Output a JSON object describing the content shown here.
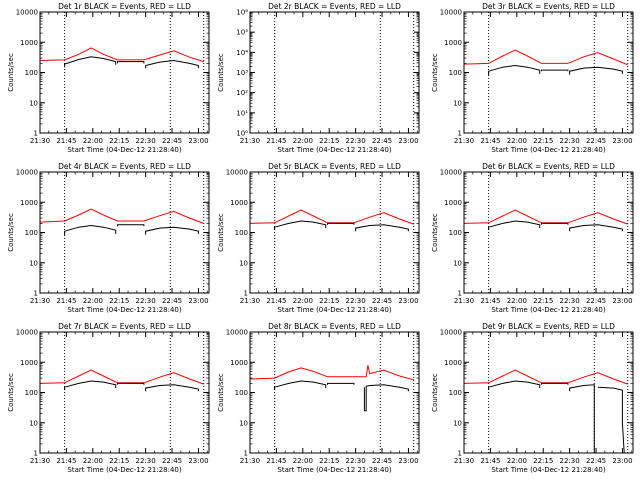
{
  "xticks": [
    "21:30",
    "21:45",
    "22:00",
    "22:15",
    "22:30",
    "22:45",
    "23:00"
  ],
  "xlabel": "Start Time (04-Dec-12 21:28:40)",
  "ylabel": "Counts/sec",
  "colors": {
    "events": "#000000",
    "lld": "#ff0000",
    "axes": "#000000"
  },
  "chart_data": [
    {
      "type": "line",
      "title": "Det 1r BLACK = Events, RED = LLD",
      "xlim": [
        "21:30",
        "23:06"
      ],
      "ylim": [
        1,
        10000
      ],
      "yscale": "log",
      "yticks": [
        "1",
        "10",
        "100",
        "1000",
        "10000"
      ],
      "vlines": [
        "21:44",
        "22:44",
        "23:03"
      ],
      "series": [
        {
          "color": "red",
          "x": [
            "21:30",
            "21:44",
            "21:52",
            "21:59",
            "22:06",
            "22:14",
            "22:29",
            "22:38",
            "22:46",
            "22:55",
            "23:03"
          ],
          "y": [
            250,
            260,
            400,
            650,
            400,
            260,
            260,
            380,
            520,
            320,
            230
          ]
        },
        {
          "color": "black",
          "segments": [
            {
              "x": [
                "21:44",
                "21:44",
                "21:52",
                "21:59",
                "22:06",
                "22:13",
                "22:13"
              ],
              "y": [
                150,
                190,
                270,
                330,
                290,
                230,
                180
              ]
            },
            {
              "x": [
                "22:14",
                "22:14",
                "22:29",
                "22:29"
              ],
              "y": [
                200,
                230,
                230,
                200
              ]
            },
            {
              "x": [
                "22:30",
                "22:30",
                "22:38",
                "22:46",
                "22:55",
                "23:00",
                "23:00"
              ],
              "y": [
                140,
                170,
                220,
                250,
                200,
                170,
                140
              ]
            }
          ]
        }
      ]
    },
    {
      "type": "line",
      "title": "Det 2r BLACK = Events, RED = LLD",
      "xlim": [
        "21:30",
        "23:06"
      ],
      "ylim": [
        1,
        1000000
      ],
      "yscale": "log",
      "yticks": [
        "10⁰",
        "10¹",
        "10²",
        "10³",
        "10⁴",
        "10⁵",
        "10⁶"
      ],
      "vlines": [
        "21:44",
        "22:44",
        "23:03"
      ],
      "series": []
    },
    {
      "type": "line",
      "title": "Det 3r BLACK = Events, RED = LLD",
      "xlim": [
        "21:30",
        "23:06"
      ],
      "ylim": [
        1,
        10000
      ],
      "yscale": "log",
      "yticks": [
        "1",
        "10",
        "100",
        "1000",
        "10000"
      ],
      "vlines": [
        "21:44",
        "22:44",
        "23:03"
      ],
      "series": [
        {
          "color": "red",
          "x": [
            "21:30",
            "21:44",
            "21:52",
            "21:59",
            "22:06",
            "22:14",
            "22:29",
            "22:38",
            "22:46",
            "22:55",
            "23:03"
          ],
          "y": [
            190,
            200,
            350,
            550,
            350,
            200,
            200,
            330,
            450,
            280,
            180
          ]
        },
        {
          "color": "black",
          "segments": [
            {
              "x": [
                "21:44",
                "21:44",
                "21:52",
                "21:59",
                "22:06",
                "22:13",
                "22:13"
              ],
              "y": [
                80,
                110,
                150,
                170,
                150,
                120,
                90
              ]
            },
            {
              "x": [
                "22:14",
                "22:14",
                "22:29",
                "22:29"
              ],
              "y": [
                110,
                120,
                120,
                110
              ]
            },
            {
              "x": [
                "22:30",
                "22:30",
                "22:38",
                "22:46",
                "22:55",
                "23:00",
                "23:00"
              ],
              "y": [
                85,
                110,
                140,
                150,
                130,
                110,
                90
              ]
            }
          ]
        }
      ]
    },
    {
      "type": "line",
      "title": "Det 4r BLACK = Events, RED = LLD",
      "xlim": [
        "21:30",
        "23:06"
      ],
      "ylim": [
        1,
        10000
      ],
      "yscale": "log",
      "yticks": [
        "1",
        "10",
        "100",
        "1000",
        "10000"
      ],
      "vlines": [
        "21:44",
        "22:44",
        "23:03"
      ],
      "series": [
        {
          "color": "red",
          "x": [
            "21:30",
            "21:44",
            "21:52",
            "21:59",
            "22:06",
            "22:14",
            "22:29",
            "22:38",
            "22:46",
            "22:55",
            "23:03"
          ],
          "y": [
            220,
            240,
            380,
            600,
            380,
            240,
            240,
            360,
            500,
            300,
            200
          ]
        },
        {
          "color": "black",
          "segments": [
            {
              "x": [
                "21:44",
                "21:44",
                "21:52",
                "21:59",
                "22:06",
                "22:13",
                "22:13"
              ],
              "y": [
                80,
                110,
                150,
                170,
                150,
                120,
                90
              ]
            },
            {
              "x": [
                "22:14",
                "22:14",
                "22:29",
                "22:29"
              ],
              "y": [
                160,
                180,
                180,
                160
              ]
            },
            {
              "x": [
                "22:30",
                "22:30",
                "22:38",
                "22:46",
                "22:55",
                "23:00",
                "23:00"
              ],
              "y": [
                85,
                110,
                140,
                150,
                130,
                110,
                90
              ]
            }
          ]
        }
      ]
    },
    {
      "type": "line",
      "title": "Det 5r BLACK = Events, RED = LLD",
      "xlim": [
        "21:30",
        "23:06"
      ],
      "ylim": [
        1,
        10000
      ],
      "yscale": "log",
      "yticks": [
        "1",
        "10",
        "100",
        "1000",
        "10000"
      ],
      "vlines": [
        "21:44",
        "22:44",
        "23:03"
      ],
      "series": [
        {
          "color": "red",
          "x": [
            "21:30",
            "21:44",
            "21:52",
            "21:59",
            "22:06",
            "22:14",
            "22:29",
            "22:38",
            "22:46",
            "22:55",
            "23:03"
          ],
          "y": [
            200,
            210,
            350,
            550,
            350,
            210,
            210,
            320,
            450,
            280,
            190
          ]
        },
        {
          "color": "black",
          "segments": [
            {
              "x": [
                "21:44",
                "21:44",
                "21:52",
                "21:59",
                "22:06",
                "22:13",
                "22:13"
              ],
              "y": [
                120,
                150,
                200,
                240,
                220,
                180,
                140
              ]
            },
            {
              "x": [
                "22:14",
                "22:14",
                "22:29",
                "22:29"
              ],
              "y": [
                180,
                200,
                200,
                180
              ]
            },
            {
              "x": [
                "22:30",
                "22:30",
                "22:38",
                "22:46",
                "22:55",
                "23:00",
                "23:00"
              ],
              "y": [
                110,
                140,
                170,
                180,
                150,
                130,
                110
              ]
            }
          ]
        }
      ]
    },
    {
      "type": "line",
      "title": "Det 6r BLACK = Events, RED = LLD",
      "xlim": [
        "21:30",
        "23:06"
      ],
      "ylim": [
        1,
        10000
      ],
      "yscale": "log",
      "yticks": [
        "1",
        "10",
        "100",
        "1000",
        "10000"
      ],
      "vlines": [
        "21:44",
        "22:44",
        "23:03"
      ],
      "series": [
        {
          "color": "red",
          "x": [
            "21:30",
            "21:44",
            "21:52",
            "21:59",
            "22:06",
            "22:14",
            "22:29",
            "22:38",
            "22:46",
            "22:55",
            "23:03"
          ],
          "y": [
            200,
            210,
            350,
            550,
            350,
            210,
            210,
            320,
            450,
            280,
            190
          ]
        },
        {
          "color": "black",
          "segments": [
            {
              "x": [
                "21:44",
                "21:44",
                "21:52",
                "21:59",
                "22:06",
                "22:13",
                "22:13"
              ],
              "y": [
                120,
                150,
                200,
                240,
                220,
                180,
                140
              ]
            },
            {
              "x": [
                "22:14",
                "22:14",
                "22:29",
                "22:29"
              ],
              "y": [
                180,
                200,
                200,
                180
              ]
            },
            {
              "x": [
                "22:30",
                "22:30",
                "22:38",
                "22:46",
                "22:55",
                "23:00",
                "23:00"
              ],
              "y": [
                110,
                140,
                170,
                180,
                150,
                130,
                110
              ]
            }
          ]
        }
      ]
    },
    {
      "type": "line",
      "title": "Det 7r BLACK = Events, RED = LLD",
      "xlim": [
        "21:30",
        "23:06"
      ],
      "ylim": [
        1,
        10000
      ],
      "yscale": "log",
      "yticks": [
        "1",
        "10",
        "100",
        "1000",
        "10000"
      ],
      "vlines": [
        "21:44",
        "22:44",
        "23:03"
      ],
      "series": [
        {
          "color": "red",
          "x": [
            "21:30",
            "21:44",
            "21:52",
            "21:59",
            "22:06",
            "22:14",
            "22:29",
            "22:38",
            "22:46",
            "22:55",
            "23:03"
          ],
          "y": [
            200,
            210,
            350,
            550,
            350,
            210,
            210,
            320,
            450,
            280,
            190
          ]
        },
        {
          "color": "black",
          "segments": [
            {
              "x": [
                "21:44",
                "21:44",
                "21:52",
                "21:59",
                "22:06",
                "22:13",
                "22:13"
              ],
              "y": [
                120,
                150,
                200,
                240,
                220,
                180,
                140
              ]
            },
            {
              "x": [
                "22:14",
                "22:14",
                "22:29",
                "22:29"
              ],
              "y": [
                180,
                200,
                200,
                180
              ]
            },
            {
              "x": [
                "22:30",
                "22:30",
                "22:38",
                "22:46",
                "22:55",
                "23:00",
                "23:00"
              ],
              "y": [
                110,
                140,
                170,
                180,
                150,
                130,
                110
              ]
            }
          ]
        }
      ]
    },
    {
      "type": "line",
      "title": "Det 8r BLACK = Events, RED = LLD",
      "xlim": [
        "21:30",
        "23:06"
      ],
      "ylim": [
        1,
        10000
      ],
      "yscale": "log",
      "yticks": [
        "1",
        "10",
        "100",
        "1000",
        "10000"
      ],
      "vlines": [
        "21:44",
        "22:44",
        "23:03"
      ],
      "series": [
        {
          "color": "red",
          "x": [
            "21:30",
            "21:44",
            "21:52",
            "21:59",
            "22:06",
            "22:14",
            "22:29",
            "22:36",
            "22:37",
            "22:38",
            "22:46",
            "22:55",
            "23:03"
          ],
          "y": [
            280,
            300,
            480,
            650,
            500,
            330,
            330,
            330,
            800,
            420,
            550,
            350,
            260
          ]
        },
        {
          "color": "black",
          "segments": [
            {
              "x": [
                "21:44",
                "21:44",
                "21:52",
                "21:59",
                "22:06",
                "22:13",
                "22:13"
              ],
              "y": [
                120,
                150,
                200,
                240,
                220,
                180,
                140
              ]
            },
            {
              "x": [
                "22:14",
                "22:14",
                "22:29",
                "22:29"
              ],
              "y": [
                180,
                200,
                200,
                180
              ]
            },
            {
              "x": [
                "22:35",
                "22:35",
                "22:36",
                "22:36",
                "22:38",
                "22:46",
                "22:55",
                "23:00",
                "23:00"
              ],
              "y": [
                150,
                25,
                25,
                160,
                170,
                180,
                150,
                130,
                110
              ]
            }
          ]
        }
      ]
    },
    {
      "type": "line",
      "title": "Det 9r BLACK = Events, RED = LLD",
      "xlim": [
        "21:30",
        "23:06"
      ],
      "ylim": [
        1,
        10000
      ],
      "yscale": "log",
      "yticks": [
        "1",
        "10",
        "100",
        "1000",
        "10000"
      ],
      "vlines": [
        "21:44",
        "22:44",
        "23:03"
      ],
      "series": [
        {
          "color": "red",
          "x": [
            "21:30",
            "21:44",
            "21:52",
            "21:59",
            "22:06",
            "22:14",
            "22:29",
            "22:38",
            "22:46",
            "22:55",
            "23:03"
          ],
          "y": [
            200,
            210,
            350,
            550,
            350,
            210,
            210,
            320,
            450,
            280,
            190
          ]
        },
        {
          "color": "black",
          "segments": [
            {
              "x": [
                "21:44",
                "21:44",
                "21:52",
                "21:59",
                "22:06",
                "22:13",
                "22:13"
              ],
              "y": [
                120,
                150,
                200,
                240,
                220,
                180,
                140
              ]
            },
            {
              "x": [
                "22:14",
                "22:14",
                "22:29",
                "22:29"
              ],
              "y": [
                180,
                200,
                200,
                180
              ]
            },
            {
              "x": [
                "22:30",
                "22:30",
                "22:38",
                "22:44",
                "22:44"
              ],
              "y": [
                110,
                140,
                170,
                180,
                1
              ]
            },
            {
              "x": [
                "22:46",
                "22:55",
                "23:00",
                "23:00",
                "23:01"
              ],
              "y": [
                150,
                140,
                120,
                10,
                1
              ]
            }
          ]
        }
      ]
    }
  ]
}
